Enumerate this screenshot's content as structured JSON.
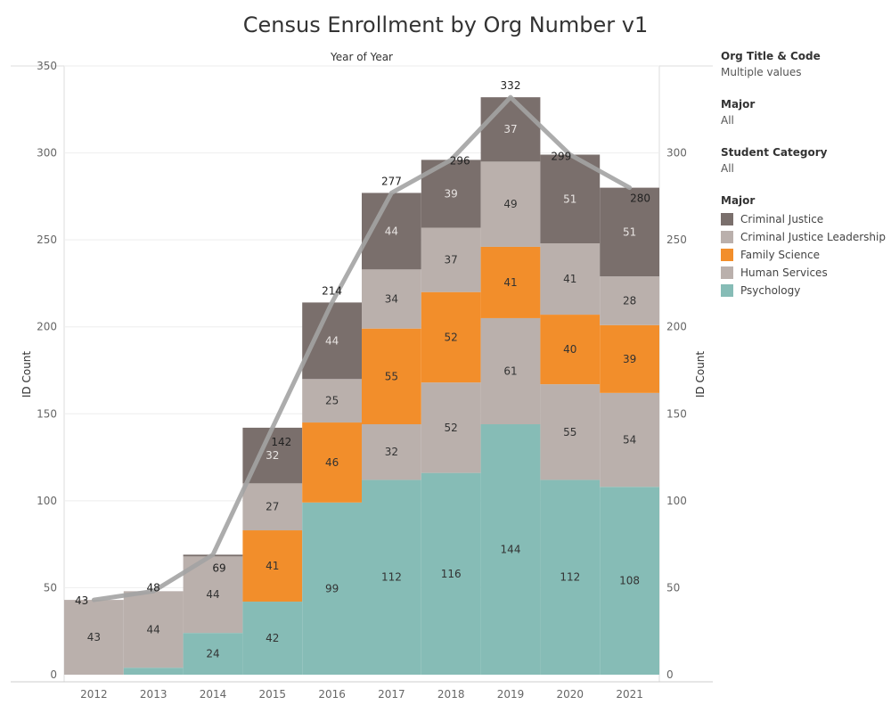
{
  "title": "Census Enrollment by Org Number v1",
  "filters": [
    {
      "label": "Org Title & Code",
      "value": "Multiple values"
    },
    {
      "label": "Major",
      "value": "All"
    },
    {
      "label": "Student Category",
      "value": "All"
    }
  ],
  "legend": {
    "title": "Major",
    "items": [
      {
        "label": "Criminal Justice",
        "color": "#7a6f6c"
      },
      {
        "label": "Criminal Justice Leadership",
        "color": "#bab0ac"
      },
      {
        "label": "Family Science",
        "color": "#f28e2b"
      },
      {
        "label": "Human Services",
        "color": "#bab0ac"
      },
      {
        "label": "Psychology",
        "color": "#86bcb6"
      }
    ]
  },
  "chart_data": {
    "type": "bar",
    "stacked": true,
    "title": "Census Enrollment by Org Number v1",
    "column_header": "Year of Year",
    "ylabel": "ID Count",
    "ylabel_right": "ID Count",
    "categories": [
      "2012",
      "2013",
      "2014",
      "2015",
      "2016",
      "2017",
      "2018",
      "2019",
      "2020",
      "2021"
    ],
    "ylim": [
      0,
      350
    ],
    "yticks": [
      0,
      50,
      100,
      150,
      200,
      250,
      300,
      350
    ],
    "yticks_right": [
      0,
      50,
      100,
      150,
      200,
      250,
      300
    ],
    "series": [
      {
        "name": "Psychology",
        "color": "#86bcb6",
        "label_color": "#333333",
        "values": [
          0,
          4,
          24,
          42,
          99,
          112,
          116,
          144,
          112,
          108
        ],
        "labels": [
          null,
          null,
          "24",
          "42",
          "99",
          "112",
          "116",
          "144",
          "112",
          "108"
        ]
      },
      {
        "name": "Human Services",
        "color": "#bab0ac",
        "label_color": "#333333",
        "values": [
          43,
          44,
          44,
          0,
          0,
          32,
          52,
          61,
          55,
          54
        ],
        "labels": [
          "43",
          "44",
          "44",
          null,
          null,
          "32",
          "52",
          "61",
          "55",
          "54"
        ]
      },
      {
        "name": "Family Science",
        "color": "#f28e2b",
        "label_color": "#333333",
        "values": [
          0,
          0,
          0,
          41,
          46,
          55,
          52,
          41,
          40,
          39
        ],
        "labels": [
          null,
          null,
          null,
          "41",
          "46",
          "55",
          "52",
          "41",
          "40",
          "39"
        ]
      },
      {
        "name": "Criminal Justice Leadership",
        "color": "#bab0ac",
        "label_color": "#333333",
        "values": [
          0,
          0,
          0,
          27,
          25,
          34,
          37,
          49,
          41,
          28
        ],
        "labels": [
          null,
          null,
          null,
          "27",
          "25",
          "34",
          "37",
          "49",
          "41",
          "28"
        ]
      },
      {
        "name": "Criminal Justice",
        "color": "#7a6f6c",
        "label_color": "#e8e4e2",
        "values": [
          0,
          0,
          1,
          32,
          44,
          44,
          39,
          37,
          51,
          51
        ],
        "labels": [
          null,
          null,
          null,
          "32",
          "44",
          "44",
          "39",
          "37",
          "51",
          "51"
        ]
      }
    ],
    "totals": [
      43,
      48,
      69,
      142,
      214,
      277,
      296,
      332,
      299,
      280
    ],
    "total_line_color": "#a3a3a3"
  }
}
